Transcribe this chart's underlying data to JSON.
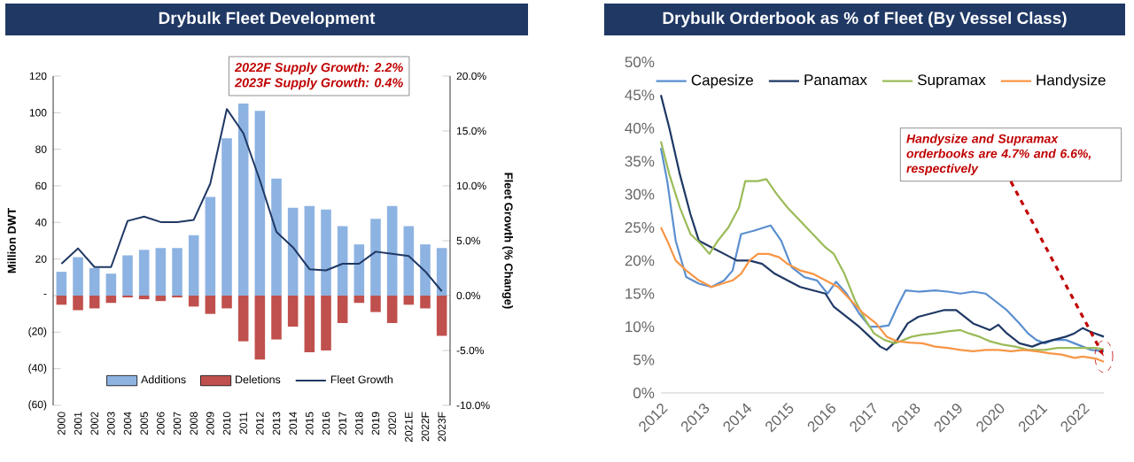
{
  "chart_data": [
    {
      "type": "bar",
      "title": "Drybulk Fleet Development",
      "ylabel": "Million DWT",
      "y2label": "Fleet Growth (% Change)",
      "categories": [
        "2000",
        "2001",
        "2002",
        "2003",
        "2004",
        "2005",
        "2006",
        "2007",
        "2008",
        "2009",
        "2010",
        "2011",
        "2012",
        "2013",
        "2014",
        "2015",
        "2016",
        "2017",
        "2018",
        "2019",
        "2020",
        "2021E",
        "2022F",
        "2023F"
      ],
      "stacked": true,
      "series": [
        {
          "name": "Additions",
          "color": "#8db3e2",
          "values": [
            13,
            21,
            15,
            12,
            22,
            25,
            26,
            26,
            33,
            54,
            86,
            105,
            101,
            64,
            48,
            49,
            47,
            38,
            28,
            42,
            49,
            38,
            28,
            26
          ]
        },
        {
          "name": "Deletions",
          "color": "#c0504d",
          "values": [
            -5,
            -8,
            -7,
            -4,
            -1,
            -2,
            -3,
            -1,
            -6,
            -10,
            -7,
            -25,
            -35,
            -24,
            -17,
            -31,
            -30,
            -15,
            -4,
            -9,
            -15,
            -5,
            -7,
            -22
          ]
        },
        {
          "name": "Fleet Growth",
          "type": "line",
          "axis": "y2",
          "color": "#1f3864",
          "values": [
            2.9,
            4.3,
            2.6,
            2.6,
            6.8,
            7.2,
            6.7,
            6.7,
            6.9,
            10.2,
            17.0,
            14.8,
            10.5,
            5.8,
            4.4,
            2.4,
            2.3,
            2.9,
            2.9,
            4.0,
            3.8,
            3.6,
            2.2,
            0.4
          ]
        }
      ],
      "ylim": [
        -60,
        120
      ],
      "yticks": [
        {
          "value": -60,
          "label": "(60)"
        },
        {
          "value": -40,
          "label": "(40)"
        },
        {
          "value": -20,
          "label": "(20)"
        },
        {
          "value": 0,
          "label": "-"
        },
        20,
        40,
        60,
        80,
        100,
        120
      ],
      "y2lim": [
        -10,
        20
      ],
      "y2ticks": [
        {
          "value": -10,
          "label": "-10.0%"
        },
        {
          "value": -5,
          "label": "-5.0%"
        },
        {
          "value": 0,
          "label": "0.0%"
        },
        {
          "value": 5,
          "label": "5.0%"
        },
        {
          "value": 10,
          "label": "10.0%"
        },
        {
          "value": 15,
          "label": "15.0%"
        },
        {
          "value": 20,
          "label": "20.0%"
        }
      ],
      "legend": "bottom",
      "annotations": [
        "2022F Supply Growth:  2.2%",
        "2023F Supply Growth:  0.4%"
      ]
    },
    {
      "type": "line",
      "title": "Drybulk Orderbook as % of Fleet (By Vessel Class)",
      "series": [
        {
          "name": "Capesize",
          "color": "#5b8fd0",
          "x": [
            2012,
            2012.15,
            2012.35,
            2012.6,
            2012.9,
            2013.2,
            2013.5,
            2013.7,
            2013.9,
            2014.2,
            2014.6,
            2014.85,
            2015.1,
            2015.4,
            2015.7,
            2015.95,
            2016.15,
            2016.4,
            2016.7,
            2016.95,
            2017.2,
            2017.4,
            2017.6,
            2017.8,
            2018.1,
            2018.5,
            2018.8,
            2019.1,
            2019.4,
            2019.7,
            2019.9,
            2020.2,
            2020.5,
            2020.7,
            2020.9,
            2021.1,
            2021.3,
            2021.6,
            2021.8,
            2022.0,
            2022.2,
            2022.5
          ],
          "values": [
            37,
            32,
            23,
            17.5,
            16.5,
            16,
            17,
            18.5,
            24,
            24.5,
            25.3,
            23,
            19,
            17.5,
            17,
            15,
            16.8,
            15,
            12,
            10,
            10,
            10.2,
            13,
            15.5,
            15.3,
            15.5,
            15.3,
            15,
            15.3,
            15,
            14,
            12.5,
            10.5,
            9,
            8,
            7.5,
            8,
            8,
            7.5,
            7,
            6.5,
            6.3
          ]
        },
        {
          "name": "Panamax",
          "color": "#1f3864",
          "x": [
            2012,
            2012.2,
            2012.45,
            2012.7,
            2012.9,
            2013.2,
            2013.5,
            2013.8,
            2014.1,
            2014.4,
            2014.7,
            2015.0,
            2015.3,
            2015.6,
            2015.9,
            2016.1,
            2016.4,
            2016.7,
            2016.95,
            2017.2,
            2017.35,
            2017.6,
            2017.85,
            2018.1,
            2018.4,
            2018.7,
            2019.0,
            2019.2,
            2019.4,
            2019.6,
            2019.8,
            2020.0,
            2020.2,
            2020.5,
            2020.8,
            2021.0,
            2021.3,
            2021.6,
            2021.8,
            2022.0,
            2022.2,
            2022.5
          ],
          "values": [
            45,
            40,
            33,
            27,
            23,
            22,
            21,
            20,
            20,
            19.5,
            18,
            17,
            16,
            15.5,
            15,
            13,
            11.5,
            10,
            8.5,
            7,
            6.5,
            8,
            10.5,
            11.5,
            12,
            12.5,
            12.5,
            11.5,
            10.5,
            10,
            9.5,
            10.3,
            9,
            7.5,
            7,
            7.5,
            8,
            8.5,
            9,
            9.8,
            9.2,
            8.5
          ]
        },
        {
          "name": "Supramax",
          "color": "#9bbb59",
          "x": [
            2012,
            2012.2,
            2012.45,
            2012.7,
            2012.95,
            2013.15,
            2013.35,
            2013.6,
            2013.85,
            2014.0,
            2014.3,
            2014.5,
            2014.75,
            2015.0,
            2015.3,
            2015.6,
            2015.9,
            2016.1,
            2016.35,
            2016.6,
            2016.85,
            2017.05,
            2017.3,
            2017.55,
            2017.75,
            2017.95,
            2018.2,
            2018.5,
            2018.8,
            2019.1,
            2019.3,
            2019.55,
            2019.8,
            2020.1,
            2020.4,
            2020.7,
            2020.9,
            2021.1,
            2021.4,
            2021.7,
            2022.0,
            2022.3,
            2022.5
          ],
          "values": [
            38,
            33,
            28,
            24,
            22.5,
            21,
            23,
            25,
            28,
            32,
            32,
            32.3,
            30,
            28,
            26,
            24,
            22,
            21,
            18,
            14,
            11,
            9,
            8,
            7.5,
            8,
            8.5,
            8.8,
            9,
            9.3,
            9.5,
            9,
            8.5,
            7.8,
            7.3,
            7,
            6.5,
            6.5,
            6.5,
            6.8,
            6.8,
            6.8,
            6.8,
            6.6
          ]
        },
        {
          "name": "Handysize",
          "color": "#f79646",
          "x": [
            2012,
            2012.15,
            2012.35,
            2012.6,
            2012.9,
            2013.2,
            2013.45,
            2013.7,
            2013.9,
            2014.1,
            2014.3,
            2014.55,
            2014.8,
            2015.0,
            2015.3,
            2015.6,
            2015.9,
            2016.2,
            2016.5,
            2016.8,
            2017.1,
            2017.35,
            2017.6,
            2017.9,
            2018.2,
            2018.5,
            2018.8,
            2019.1,
            2019.4,
            2019.7,
            2020.0,
            2020.3,
            2020.6,
            2020.9,
            2021.2,
            2021.5,
            2021.8,
            2022.0,
            2022.3,
            2022.5
          ],
          "values": [
            25,
            23,
            20,
            18.5,
            17,
            16,
            16.5,
            17,
            18,
            20,
            21,
            21,
            20.5,
            19.5,
            18.5,
            18,
            17,
            16,
            14,
            12,
            10.5,
            8.5,
            7.8,
            7.6,
            7.5,
            7,
            6.8,
            6.5,
            6.3,
            6.5,
            6.5,
            6.3,
            6.5,
            6.3,
            6,
            5.8,
            5.3,
            5.5,
            5.2,
            4.7
          ]
        }
      ],
      "xlim": [
        2012,
        2022.5
      ],
      "xticks": [
        2012,
        2013,
        2014,
        2015,
        2016,
        2017,
        2018,
        2019,
        2020,
        2021,
        2022
      ],
      "ylim": [
        0,
        50
      ],
      "yticks": [
        {
          "value": 0,
          "label": "0%"
        },
        {
          "value": 5,
          "label": "5%"
        },
        {
          "value": 10,
          "label": "10%"
        },
        {
          "value": 15,
          "label": "15%"
        },
        {
          "value": 20,
          "label": "20%"
        },
        {
          "value": 25,
          "label": "25%"
        },
        {
          "value": 30,
          "label": "30%"
        },
        {
          "value": 35,
          "label": "35%"
        },
        {
          "value": 40,
          "label": "40%"
        },
        {
          "value": 45,
          "label": "45%"
        },
        {
          "value": 50,
          "label": "50%"
        }
      ],
      "legend": "top",
      "annotations": [
        {
          "text": "Handysize and Supramax orderbooks are 4.7% and 6.6%, respectively",
          "x": 2022.5,
          "y": 5.5
        }
      ]
    }
  ]
}
